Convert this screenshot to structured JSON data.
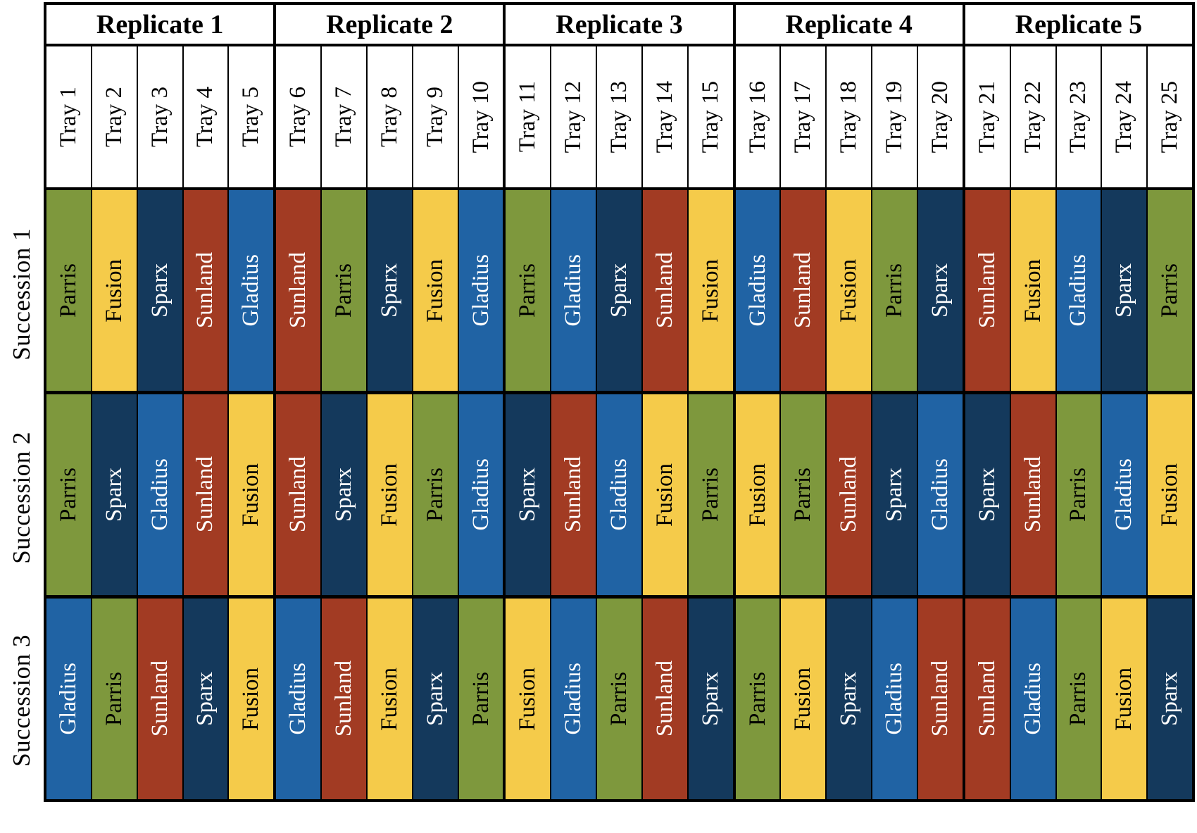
{
  "header": {
    "replicates": [
      "Replicate 1",
      "Replicate 2",
      "Replicate 3",
      "Replicate 4",
      "Replicate 5"
    ],
    "trays": [
      "Tray 1",
      "Tray 2",
      "Tray 3",
      "Tray 4",
      "Tray 5",
      "Tray 6",
      "Tray 7",
      "Tray 8",
      "Tray 9",
      "Tray 10",
      "Tray 11",
      "Tray 12",
      "Tray 13",
      "Tray 14",
      "Tray 15",
      "Tray 16",
      "Tray 17",
      "Tray 18",
      "Tray 19",
      "Tray 20",
      "Tray 21",
      "Tray 22",
      "Tray 23",
      "Tray 24",
      "Tray 25"
    ]
  },
  "rows": [
    {
      "label": "Succession 1",
      "cells": [
        "Parris",
        "Fusion",
        "Sparx",
        "Sunland",
        "Gladius",
        "Sunland",
        "Parris",
        "Sparx",
        "Fusion",
        "Gladius",
        "Parris",
        "Gladius",
        "Sparx",
        "Sunland",
        "Fusion",
        "Gladius",
        "Sunland",
        "Fusion",
        "Parris",
        "Sparx",
        "Sunland",
        "Fusion",
        "Gladius",
        "Sparx",
        "Parris"
      ]
    },
    {
      "label": "Succession 2",
      "cells": [
        "Parris",
        "Sparx",
        "Gladius",
        "Sunland",
        "Fusion",
        "Sunland",
        "Sparx",
        "Fusion",
        "Parris",
        "Gladius",
        "Sparx",
        "Sunland",
        "Gladius",
        "Fusion",
        "Parris",
        "Fusion",
        "Parris",
        "Sunland",
        "Sparx",
        "Gladius",
        "Sparx",
        "Sunland",
        "Parris",
        "Gladius",
        "Fusion"
      ]
    },
    {
      "label": "Succession 3",
      "cells": [
        "Gladius",
        "Parris",
        "Sunland",
        "Sparx",
        "Fusion",
        "Gladius",
        "Sunland",
        "Fusion",
        "Sparx",
        "Parris",
        "Fusion",
        "Gladius",
        "Parris",
        "Sunland",
        "Sparx",
        "Parris",
        "Fusion",
        "Sparx",
        "Gladius",
        "Sunland",
        "Sunland",
        "Gladius",
        "Parris",
        "Fusion",
        "Sparx"
      ]
    }
  ],
  "cultivar_colors": {
    "Parris": {
      "bg": "#7e983d",
      "text": "#000000"
    },
    "Fusion": {
      "bg": "#f5cb4a",
      "text": "#000000"
    },
    "Sparx": {
      "bg": "#14395c",
      "text": "#ffffff"
    },
    "Sunland": {
      "bg": "#a23b23",
      "text": "#ffffff"
    },
    "Gladius": {
      "bg": "#2063a4",
      "text": "#ffffff"
    }
  },
  "layout_hints": {
    "grid_line_color": "#000000",
    "header_bg": "#ffffff",
    "trays_per_replicate": 5
  }
}
